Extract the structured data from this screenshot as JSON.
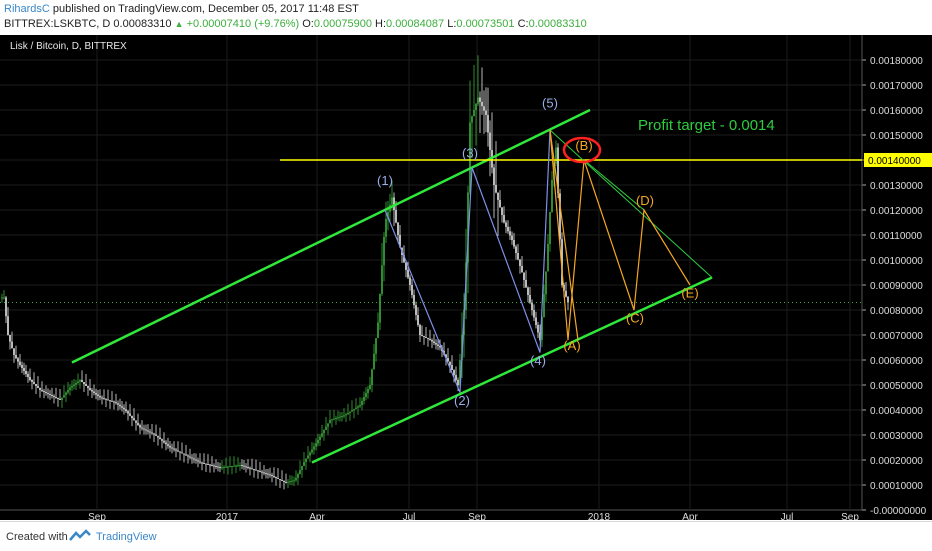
{
  "header": {
    "author": "RihardsC",
    "published": "published on TradingView.com, December 05, 2017 11:48 EST",
    "symbol": "BITTREX:LSKBTC, D",
    "last": "0.00083310",
    "change": "+0.00007410 (+9.76%)",
    "o_label": "O:",
    "o_value": "0.00075900",
    "h_label": "H:",
    "h_value": "0.00084087",
    "l_label": "L:",
    "l_value": "0.00073501",
    "c_label": "C:",
    "c_value": "0.00083310"
  },
  "chart_data": {
    "type": "candlestick",
    "title": "Lisk / Bitcoin, D, BITTREX",
    "x_tick_labels": [
      "Sep",
      "2017",
      "Apr",
      "Jul",
      "Sep",
      "2018",
      "Apr",
      "Jul",
      "Sep"
    ],
    "y_tick_labels": [
      "0.00180000",
      "0.00170000",
      "0.00160000",
      "0.00150000",
      "0.00140000",
      "0.00130000",
      "0.00120000",
      "0.00110000",
      "0.00100000",
      "0.00090000",
      "0.00080000",
      "0.00070000",
      "0.00060000",
      "0.00050000",
      "0.00040000",
      "0.00030000",
      "0.00020000",
      "0.00010000",
      "-0.00000000"
    ],
    "ylim": [
      0,
      0.0019
    ],
    "price_series_approx": [
      [
        0,
        0.00085
      ],
      [
        4,
        0.00085
      ],
      [
        8,
        0.0007
      ],
      [
        14,
        0.00062
      ],
      [
        20,
        0.00058
      ],
      [
        30,
        0.00052
      ],
      [
        40,
        0.00048
      ],
      [
        50,
        0.00046
      ],
      [
        60,
        0.00044
      ],
      [
        70,
        0.00049
      ],
      [
        80,
        0.00052
      ],
      [
        90,
        0.00048
      ],
      [
        100,
        0.00045
      ],
      [
        115,
        0.00043
      ],
      [
        125,
        0.0004
      ],
      [
        140,
        0.00033
      ],
      [
        155,
        0.0003
      ],
      [
        170,
        0.00025
      ],
      [
        185,
        0.00022
      ],
      [
        200,
        0.00019
      ],
      [
        220,
        0.00017
      ],
      [
        240,
        0.00018
      ],
      [
        255,
        0.00016
      ],
      [
        270,
        0.00014
      ],
      [
        285,
        0.00011
      ],
      [
        295,
        0.00012
      ],
      [
        305,
        0.0002
      ],
      [
        315,
        0.00026
      ],
      [
        330,
        0.00036
      ],
      [
        345,
        0.00038
      ],
      [
        360,
        0.00042
      ],
      [
        370,
        0.0005
      ],
      [
        378,
        0.00075
      ],
      [
        385,
        0.00115
      ],
      [
        392,
        0.00125
      ],
      [
        400,
        0.00105
      ],
      [
        410,
        0.0009
      ],
      [
        420,
        0.0007
      ],
      [
        430,
        0.00068
      ],
      [
        440,
        0.00065
      ],
      [
        450,
        0.00058
      ],
      [
        458,
        0.0005
      ],
      [
        465,
        0.00085
      ],
      [
        470,
        0.00155
      ],
      [
        478,
        0.00165
      ],
      [
        486,
        0.00158
      ],
      [
        494,
        0.0013
      ],
      [
        504,
        0.00115
      ],
      [
        512,
        0.00108
      ],
      [
        522,
        0.00095
      ],
      [
        532,
        0.0008
      ],
      [
        540,
        0.00068
      ],
      [
        547,
        0.001
      ],
      [
        552,
        0.00132
      ],
      [
        556,
        0.00145
      ],
      [
        562,
        0.0009
      ],
      [
        568,
        0.00083
      ]
    ],
    "channel": {
      "upper": [
        [
          72,
          0.00059
        ],
        [
          590,
          0.0016
        ]
      ],
      "lower": [
        [
          312,
          0.00019
        ],
        [
          712,
          0.00093
        ]
      ]
    },
    "horizontal_line": {
      "value": 0.0014,
      "label": "0.00140000",
      "color": "#ffff00"
    },
    "blue_waves": [
      [
        385,
        0.0012
      ],
      [
        460,
        0.00047
      ],
      [
        472,
        0.00137
      ],
      [
        540,
        0.00063
      ],
      [
        550,
        0.00152
      ]
    ],
    "orange_paths": [
      [
        [
          550,
          0.00152
        ],
        [
          568,
          0.00068
        ],
        [
          584,
          0.0014
        ],
        [
          634,
          0.0008
        ],
        [
          644,
          0.0012
        ],
        [
          690,
          0.0009
        ]
      ],
      [
        [
          550,
          0.00152
        ],
        [
          578,
          0.00068
        ]
      ]
    ],
    "green_triangle": [
      [
        550,
        0.00152
      ],
      [
        712,
        0.00093
      ],
      [
        584,
        0.0014
      ],
      [
        644,
        0.0012
      ]
    ],
    "wave_labels": [
      {
        "text": "(1)",
        "x": 385,
        "y": 0.0013,
        "color": "#9aaee8"
      },
      {
        "text": "(2)",
        "x": 462,
        "y": 0.00042,
        "color": "#9aaee8"
      },
      {
        "text": "(3)",
        "x": 470,
        "y": 0.00141,
        "color": "#9aaee8"
      },
      {
        "text": "(4)",
        "x": 538,
        "y": 0.00058,
        "color": "#9aaee8"
      },
      {
        "text": "(5)",
        "x": 550,
        "y": 0.00161,
        "color": "#9aaee8"
      },
      {
        "text": "(A)",
        "x": 572,
        "y": 0.00064,
        "color": "#f5a623"
      },
      {
        "text": "(B)",
        "x": 584,
        "y": 0.00144,
        "color": "#f5a623"
      },
      {
        "text": "(C)",
        "x": 635,
        "y": 0.00075,
        "color": "#f5a623"
      },
      {
        "text": "(D)",
        "x": 645,
        "y": 0.00122,
        "color": "#f5a623"
      },
      {
        "text": "(E)",
        "x": 690,
        "y": 0.00085,
        "color": "#f5a623"
      }
    ],
    "annotation": {
      "text": "Profit target - 0.0014",
      "color": "#2ecc40"
    },
    "current_price_dotted": 0.00083
  },
  "footer": {
    "created_with": "Created with",
    "brand": "TradingView"
  },
  "colors": {
    "bg": "#000000",
    "grid": "#1c1c1c",
    "up": "#3cae3c",
    "down": "#e8e8e8",
    "channel": "#2ee83a",
    "yellow": "#ffff00",
    "wave_blue": "#7f8fe6",
    "wave_orange": "#f5a623",
    "triangle": "#2ecc40",
    "circle": "#ff2020"
  }
}
